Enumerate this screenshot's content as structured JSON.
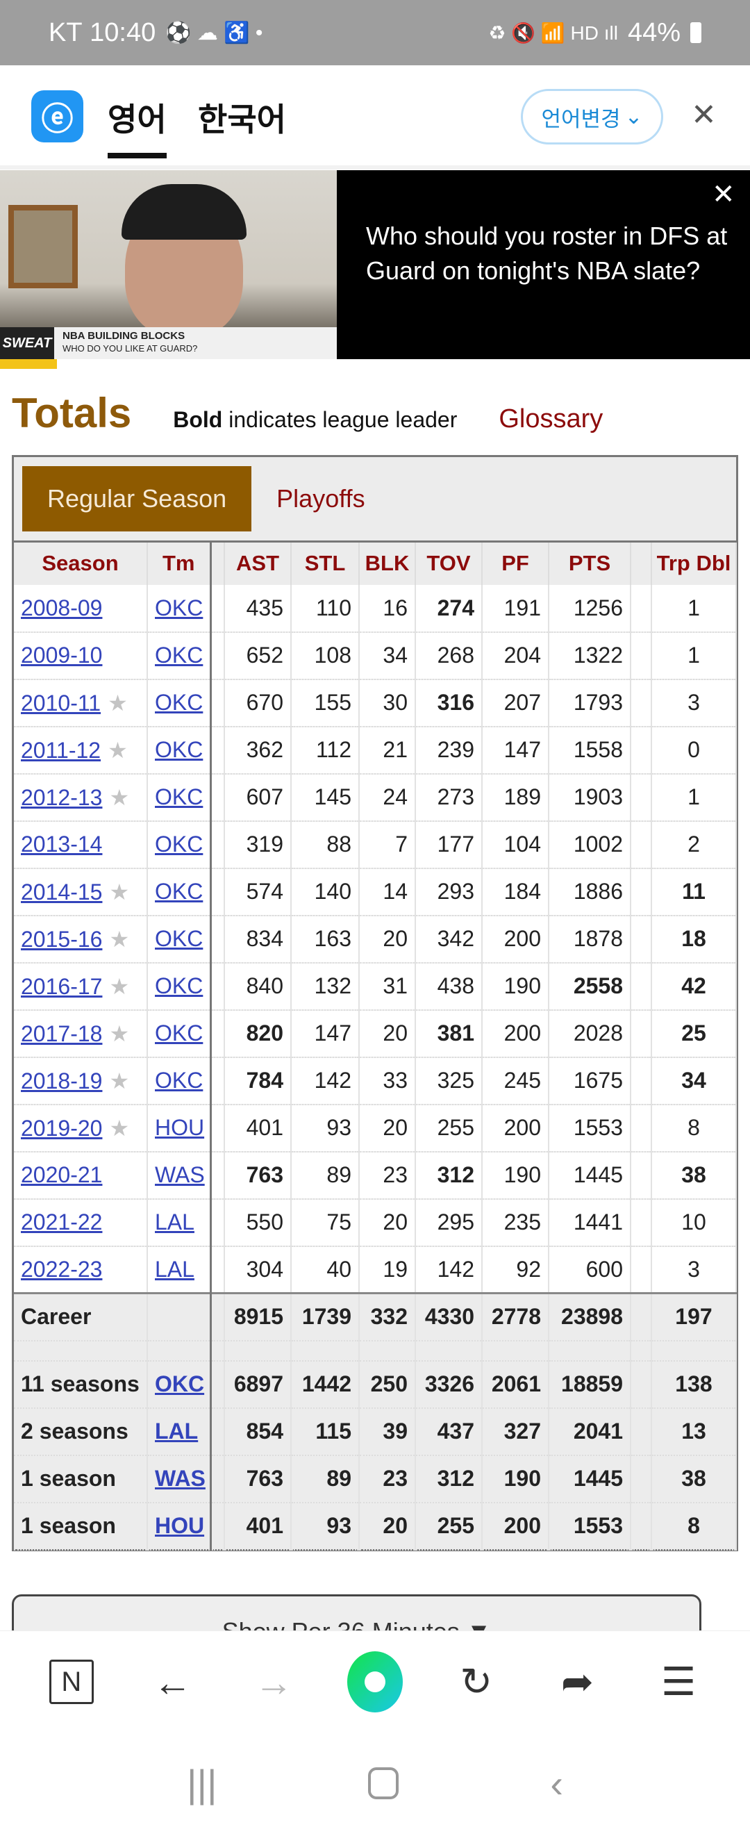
{
  "status_bar": {
    "carrier": "KT",
    "time": "10:40",
    "battery": "44%",
    "icons": [
      "soccer-icon",
      "cloud-icon",
      "accessibility-icon",
      "dot-icon",
      "battery-saver-icon",
      "mute-icon",
      "wifi-icon",
      "hd-icon",
      "signal-icon",
      "battery-icon"
    ]
  },
  "translate_bar": {
    "source_lang": "영어",
    "target_lang": "한국어",
    "change_lang": "언어변경",
    "chevron": "⌄",
    "close": "✕"
  },
  "ad": {
    "headline": "Who should you roster in DFS at Guard on tonight's NBA slate?",
    "close": "✕",
    "video_logo": "SWEAT",
    "video_title": "NBA BUILDING BLOCKS",
    "video_subtitle": "WHO DO YOU LIKE AT GUARD?"
  },
  "section": {
    "title": "Totals",
    "note_bold": "Bold",
    "note_rest": " indicates league leader",
    "glossary": "Glossary"
  },
  "tabs": {
    "regular": "Regular Season",
    "playoffs": "Playoffs"
  },
  "table": {
    "columns": [
      "Season",
      "Tm",
      "",
      "AST",
      "STL",
      "BLK",
      "TOV",
      "PF",
      "PTS",
      "",
      "Trp Dbl"
    ],
    "rows": [
      {
        "season": "2008-09",
        "star": false,
        "tm": "OKC",
        "ast": "435",
        "stl": "110",
        "blk": "16",
        "tov": "274",
        "pf": "191",
        "pts": "1256",
        "trp": "1",
        "bold": [
          "tov"
        ]
      },
      {
        "season": "2009-10",
        "star": false,
        "tm": "OKC",
        "ast": "652",
        "stl": "108",
        "blk": "34",
        "tov": "268",
        "pf": "204",
        "pts": "1322",
        "trp": "1",
        "bold": []
      },
      {
        "season": "2010-11",
        "star": true,
        "tm": "OKC",
        "ast": "670",
        "stl": "155",
        "blk": "30",
        "tov": "316",
        "pf": "207",
        "pts": "1793",
        "trp": "3",
        "bold": [
          "tov"
        ]
      },
      {
        "season": "2011-12",
        "star": true,
        "tm": "OKC",
        "ast": "362",
        "stl": "112",
        "blk": "21",
        "tov": "239",
        "pf": "147",
        "pts": "1558",
        "trp": "0",
        "bold": []
      },
      {
        "season": "2012-13",
        "star": true,
        "tm": "OKC",
        "ast": "607",
        "stl": "145",
        "blk": "24",
        "tov": "273",
        "pf": "189",
        "pts": "1903",
        "trp": "1",
        "bold": []
      },
      {
        "season": "2013-14",
        "star": false,
        "tm": "OKC",
        "ast": "319",
        "stl": "88",
        "blk": "7",
        "tov": "177",
        "pf": "104",
        "pts": "1002",
        "trp": "2",
        "bold": []
      },
      {
        "season": "2014-15",
        "star": true,
        "tm": "OKC",
        "ast": "574",
        "stl": "140",
        "blk": "14",
        "tov": "293",
        "pf": "184",
        "pts": "1886",
        "trp": "11",
        "bold": [
          "trp"
        ]
      },
      {
        "season": "2015-16",
        "star": true,
        "tm": "OKC",
        "ast": "834",
        "stl": "163",
        "blk": "20",
        "tov": "342",
        "pf": "200",
        "pts": "1878",
        "trp": "18",
        "bold": [
          "trp"
        ]
      },
      {
        "season": "2016-17",
        "star": true,
        "tm": "OKC",
        "ast": "840",
        "stl": "132",
        "blk": "31",
        "tov": "438",
        "pf": "190",
        "pts": "2558",
        "trp": "42",
        "bold": [
          "pts",
          "trp"
        ]
      },
      {
        "season": "2017-18",
        "star": true,
        "tm": "OKC",
        "ast": "820",
        "stl": "147",
        "blk": "20",
        "tov": "381",
        "pf": "200",
        "pts": "2028",
        "trp": "25",
        "bold": [
          "ast",
          "tov",
          "trp"
        ]
      },
      {
        "season": "2018-19",
        "star": true,
        "tm": "OKC",
        "ast": "784",
        "stl": "142",
        "blk": "33",
        "tov": "325",
        "pf": "245",
        "pts": "1675",
        "trp": "34",
        "bold": [
          "ast",
          "trp"
        ]
      },
      {
        "season": "2019-20",
        "star": true,
        "tm": "HOU",
        "ast": "401",
        "stl": "93",
        "blk": "20",
        "tov": "255",
        "pf": "200",
        "pts": "1553",
        "trp": "8",
        "bold": []
      },
      {
        "season": "2020-21",
        "star": false,
        "tm": "WAS",
        "ast": "763",
        "stl": "89",
        "blk": "23",
        "tov": "312",
        "pf": "190",
        "pts": "1445",
        "trp": "38",
        "bold": [
          "ast",
          "tov",
          "trp"
        ]
      },
      {
        "season": "2021-22",
        "star": false,
        "tm": "LAL",
        "ast": "550",
        "stl": "75",
        "blk": "20",
        "tov": "295",
        "pf": "235",
        "pts": "1441",
        "trp": "10",
        "bold": []
      },
      {
        "season": "2022-23",
        "star": false,
        "tm": "LAL",
        "ast": "304",
        "stl": "40",
        "blk": "19",
        "tov": "142",
        "pf": "92",
        "pts": "600",
        "trp": "3",
        "bold": []
      }
    ],
    "career": {
      "season": "Career",
      "tm": "",
      "ast": "8915",
      "stl": "1739",
      "blk": "332",
      "tov": "4330",
      "pf": "2778",
      "pts": "23898",
      "trp": "197"
    },
    "teams": [
      {
        "season": "11 seasons",
        "tm": "OKC",
        "ast": "6897",
        "stl": "1442",
        "blk": "250",
        "tov": "3326",
        "pf": "2061",
        "pts": "18859",
        "trp": "138"
      },
      {
        "season": "2 seasons",
        "tm": "LAL",
        "ast": "854",
        "stl": "115",
        "blk": "39",
        "tov": "437",
        "pf": "327",
        "pts": "2041",
        "trp": "13"
      },
      {
        "season": "1 season",
        "tm": "WAS",
        "ast": "763",
        "stl": "89",
        "blk": "23",
        "tov": "312",
        "pf": "190",
        "pts": "1445",
        "trp": "38"
      },
      {
        "season": "1 season",
        "tm": "HOU",
        "ast": "401",
        "stl": "93",
        "blk": "20",
        "tov": "255",
        "pf": "200",
        "pts": "1553",
        "trp": "8"
      }
    ]
  },
  "per36_button": "Show Per 36 Minutes ▼",
  "browser_bar": {
    "tabs_label": "N"
  }
}
